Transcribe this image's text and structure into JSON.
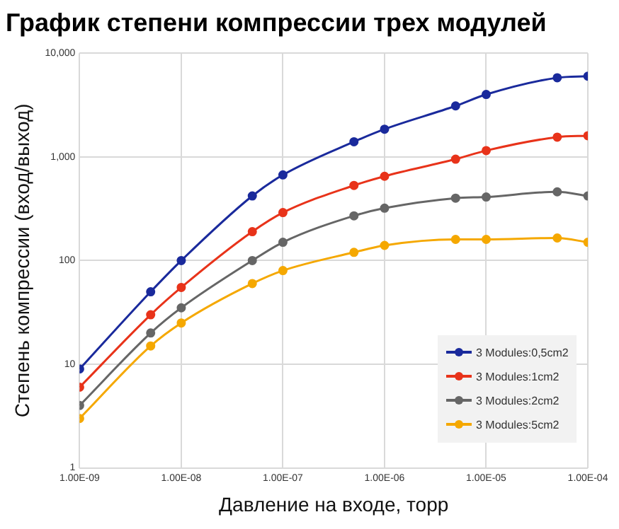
{
  "chart_data": {
    "type": "line",
    "title": "График степени компрессии трех модулей",
    "xlabel": "Давление на входе, торр",
    "ylabel": "Степень компрессии (вход/выход)",
    "x": [
      1e-09,
      5e-09,
      1e-08,
      5e-08,
      1e-07,
      5e-07,
      1e-06,
      5e-06,
      1e-05,
      5e-05,
      0.0001
    ],
    "series": [
      {
        "name": "3 Modules:0,5cm2",
        "color": "#1a2a9c",
        "values": [
          9,
          50,
          100,
          420,
          670,
          1400,
          1850,
          3100,
          4000,
          5800,
          6000
        ]
      },
      {
        "name": "3 Modules:1cm2",
        "color": "#e8331a",
        "values": [
          6,
          30,
          55,
          190,
          290,
          530,
          650,
          950,
          1150,
          1550,
          1600
        ]
      },
      {
        "name": "3 Modules:2cm2",
        "color": "#666666",
        "values": [
          4,
          20,
          35,
          100,
          150,
          270,
          320,
          400,
          410,
          460,
          420
        ]
      },
      {
        "name": "3 Modules:5cm2",
        "color": "#f5a800",
        "values": [
          3,
          15,
          25,
          60,
          80,
          120,
          140,
          160,
          160,
          165,
          150
        ]
      }
    ],
    "log": "xy",
    "xlim": [
      1e-09,
      0.0001
    ],
    "ylim": [
      1,
      10000
    ],
    "xticks": [
      {
        "value": 1e-09,
        "label": "1.00E-09"
      },
      {
        "value": 1e-08,
        "label": "1.00E-08"
      },
      {
        "value": 1e-07,
        "label": "1.00E-07"
      },
      {
        "value": 1e-06,
        "label": "1.00E-06"
      },
      {
        "value": 1e-05,
        "label": "1.00E-05"
      },
      {
        "value": 0.0001,
        "label": "1.00E-04"
      }
    ],
    "yticks": [
      1,
      10,
      100,
      {
        "value": 1000,
        "label": "1,000"
      },
      {
        "value": 10000,
        "label": "10,000"
      }
    ],
    "grid": true,
    "legend": "bottom right",
    "marker": "circle",
    "line_style": "solid"
  }
}
